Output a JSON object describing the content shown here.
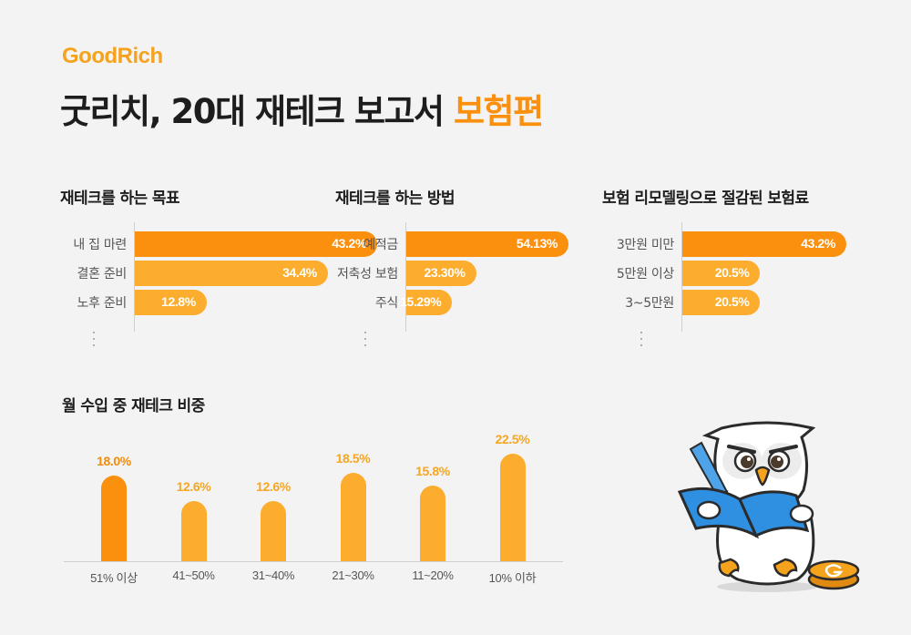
{
  "header": {
    "logo": "GoodRich",
    "title_main": "굿리치, 20대 재테크 보고서 ",
    "title_accent": "보험편"
  },
  "colors": {
    "dark_orange": "#fb8f0e",
    "light_orange": "#fcad2d",
    "value_light": "#f5a623",
    "value_dark": "#f28c0c"
  },
  "chart_data": [
    {
      "type": "bar",
      "orientation": "horizontal",
      "title": "재테크를 하는 목표",
      "categories": [
        "내 집 마련",
        "결혼 준비",
        "노후 준비"
      ],
      "values": [
        43.2,
        34.4,
        12.8
      ],
      "labels": [
        "43.2%",
        "34.4%",
        "12.8%"
      ],
      "xlim": [
        0,
        43.2
      ]
    },
    {
      "type": "bar",
      "orientation": "horizontal",
      "title": "재테크를 하는 방법",
      "categories": [
        "예적금",
        "저축성 보험",
        "주식"
      ],
      "values": [
        54.13,
        23.3,
        15.29
      ],
      "labels": [
        "54.13%",
        "23.30%",
        "15.29%"
      ],
      "xlim": [
        0,
        54.13
      ]
    },
    {
      "type": "bar",
      "orientation": "horizontal",
      "title": "보험 리모델링으로 절감된 보험료",
      "categories": [
        "3만원 미만",
        "5만원 이상",
        "3~5만원"
      ],
      "values": [
        43.2,
        20.5,
        20.5
      ],
      "labels": [
        "43.2%",
        "20.5%",
        "20.5%"
      ],
      "xlim": [
        0,
        43.2
      ]
    },
    {
      "type": "bar",
      "orientation": "vertical",
      "title": "월 수입 중 재테크 비중",
      "categories": [
        "51% 이상",
        "41~50%",
        "31~40%",
        "21~30%",
        "11~20%",
        "10% 이하"
      ],
      "values": [
        18.0,
        12.6,
        12.6,
        18.5,
        15.8,
        22.5
      ],
      "labels": [
        "18.0%",
        "12.6%",
        "12.6%",
        "18.5%",
        "15.8%",
        "22.5%"
      ],
      "ylim": [
        0,
        22.5
      ]
    }
  ]
}
